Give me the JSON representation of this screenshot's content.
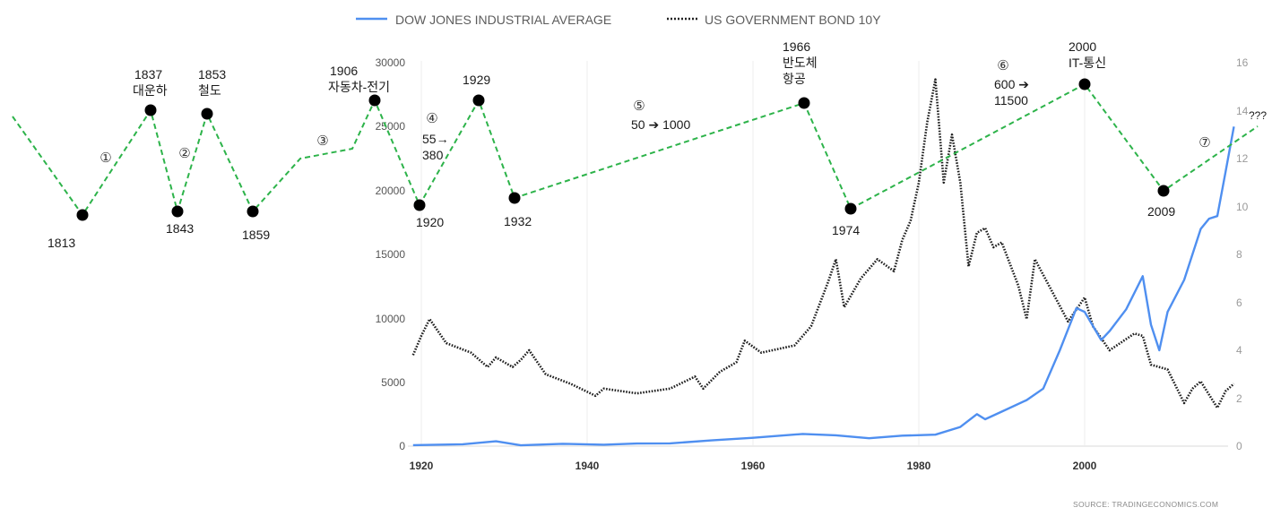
{
  "chart_data": {
    "type": "line",
    "legend": [
      {
        "name": "DOW JONES INDUSTRIAL AVERAGE",
        "style": "solid",
        "color": "#4f8ff0"
      },
      {
        "name": "US GOVERNMENT BOND 10Y",
        "style": "dotted",
        "color": "#222222"
      }
    ],
    "x_axis": {
      "min": 1919,
      "max": 2020,
      "ticks": [
        "1920",
        "1940",
        "1960",
        "1980",
        "2000"
      ]
    },
    "y_left": {
      "min": 0,
      "max": 30000,
      "ticks": [
        "0",
        "5000",
        "10000",
        "15000",
        "20000",
        "25000",
        "30000"
      ]
    },
    "y_right": {
      "min": 0,
      "max": 16,
      "ticks": [
        "0",
        "2",
        "4",
        "6",
        "8",
        "10",
        "12",
        "14",
        "16"
      ]
    },
    "series": [
      {
        "name": "DOW JONES INDUSTRIAL AVERAGE",
        "axis": "left",
        "points": [
          [
            1919,
            80
          ],
          [
            1925,
            150
          ],
          [
            1929,
            380
          ],
          [
            1932,
            60
          ],
          [
            1937,
            180
          ],
          [
            1942,
            110
          ],
          [
            1946,
            200
          ],
          [
            1950,
            220
          ],
          [
            1955,
            450
          ],
          [
            1960,
            650
          ],
          [
            1966,
            950
          ],
          [
            1970,
            850
          ],
          [
            1974,
            620
          ],
          [
            1978,
            820
          ],
          [
            1982,
            900
          ],
          [
            1985,
            1500
          ],
          [
            1987,
            2500
          ],
          [
            1988,
            2100
          ],
          [
            1990,
            2700
          ],
          [
            1993,
            3600
          ],
          [
            1995,
            4500
          ],
          [
            1997,
            7500
          ],
          [
            1999,
            10800
          ],
          [
            2000,
            10500
          ],
          [
            2002,
            8300
          ],
          [
            2003,
            9000
          ],
          [
            2005,
            10700
          ],
          [
            2007,
            13300
          ],
          [
            2008,
            9500
          ],
          [
            2009,
            7500
          ],
          [
            2010,
            10500
          ],
          [
            2012,
            13000
          ],
          [
            2014,
            17000
          ],
          [
            2015,
            17800
          ],
          [
            2016,
            18000
          ],
          [
            2017,
            21500
          ],
          [
            2018,
            25000
          ]
        ]
      },
      {
        "name": "US GOVERNMENT BOND 10Y",
        "axis": "right",
        "points": [
          [
            1919,
            3.8
          ],
          [
            1920,
            4.6
          ],
          [
            1921,
            5.3
          ],
          [
            1923,
            4.3
          ],
          [
            1926,
            3.9
          ],
          [
            1928,
            3.3
          ],
          [
            1929,
            3.7
          ],
          [
            1931,
            3.3
          ],
          [
            1932,
            3.6
          ],
          [
            1933,
            4.0
          ],
          [
            1935,
            3.0
          ],
          [
            1938,
            2.6
          ],
          [
            1941,
            2.1
          ],
          [
            1942,
            2.4
          ],
          [
            1946,
            2.2
          ],
          [
            1950,
            2.4
          ],
          [
            1953,
            2.9
          ],
          [
            1954,
            2.4
          ],
          [
            1956,
            3.1
          ],
          [
            1958,
            3.5
          ],
          [
            1959,
            4.4
          ],
          [
            1961,
            3.9
          ],
          [
            1965,
            4.2
          ],
          [
            1967,
            5.0
          ],
          [
            1969,
            6.8
          ],
          [
            1970,
            7.8
          ],
          [
            1971,
            5.8
          ],
          [
            1973,
            7.0
          ],
          [
            1975,
            7.8
          ],
          [
            1977,
            7.3
          ],
          [
            1978,
            8.6
          ],
          [
            1979,
            9.4
          ],
          [
            1980,
            11.0
          ],
          [
            1981,
            13.5
          ],
          [
            1982,
            15.3
          ],
          [
            1983,
            11.0
          ],
          [
            1984,
            13.0
          ],
          [
            1985,
            11.0
          ],
          [
            1986,
            7.5
          ],
          [
            1987,
            8.9
          ],
          [
            1988,
            9.1
          ],
          [
            1989,
            8.3
          ],
          [
            1990,
            8.5
          ],
          [
            1992,
            6.7
          ],
          [
            1993,
            5.3
          ],
          [
            1994,
            7.8
          ],
          [
            1996,
            6.5
          ],
          [
            1998,
            5.2
          ],
          [
            2000,
            6.2
          ],
          [
            2001,
            5.0
          ],
          [
            2003,
            4.0
          ],
          [
            2006,
            4.7
          ],
          [
            2007,
            4.6
          ],
          [
            2008,
            3.4
          ],
          [
            2010,
            3.2
          ],
          [
            2012,
            1.8
          ],
          [
            2013,
            2.4
          ],
          [
            2014,
            2.7
          ],
          [
            2016,
            1.6
          ],
          [
            2017,
            2.3
          ],
          [
            2018,
            2.6
          ]
        ]
      }
    ],
    "annotations": {
      "events": [
        {
          "year_label": "1813",
          "sub_label": ""
        },
        {
          "year_label": "1837",
          "sub_label": "대운하"
        },
        {
          "year_label": "1843",
          "sub_label": ""
        },
        {
          "year_label": "1853",
          "sub_label": "철도"
        },
        {
          "year_label": "1859",
          "sub_label": ""
        },
        {
          "year_label": "1906",
          "sub_label": "자동차-전기"
        },
        {
          "year_label": "1920",
          "sub_label": ""
        },
        {
          "year_label": "1929",
          "sub_label": ""
        },
        {
          "year_label": "1932",
          "sub_label": ""
        },
        {
          "year_label": "1966",
          "sub_label": "반도체"
        },
        {
          "year_label": "1974",
          "sub_label": ""
        },
        {
          "year_label": "2000",
          "sub_label": "IT-통신"
        },
        {
          "year_label": "2009",
          "sub_label": ""
        }
      ],
      "extra_label_1966": "항공",
      "phases": [
        "①",
        "②",
        "③",
        "④",
        "⑤",
        "⑥",
        "⑦"
      ],
      "phase4_note": [
        "55→",
        "380"
      ],
      "phase5_note": "50 ➔ 1000",
      "phase6_note": [
        "600 ➔",
        "11500"
      ],
      "end_label": "???"
    },
    "source": "SOURCE: TRADINGECONOMICS.COM"
  }
}
